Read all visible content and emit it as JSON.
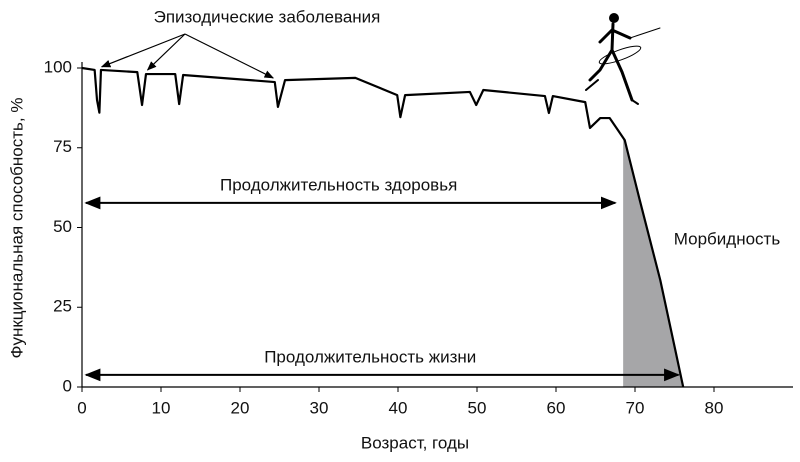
{
  "chart_data": {
    "type": "line",
    "x_label": "Возраст, годы",
    "y_label": "Функциональная способность, %",
    "xlim": [
      0,
      90
    ],
    "xticks": [
      0,
      10,
      20,
      30,
      40,
      50,
      60,
      70,
      80
    ],
    "ylim": [
      0,
      100
    ],
    "yticks": [
      0,
      25,
      50,
      75,
      100
    ],
    "grid": false,
    "series": [
      {
        "color": "#000000",
        "x": [
          0,
          1.6,
          1.9,
          2.2,
          2.4,
          7.0,
          7.6,
          8.1,
          11.8,
          12.3,
          12.8,
          24.4,
          24.8,
          25.7,
          34.6,
          39.9,
          40.3,
          40.9,
          49.1,
          49.9,
          50.8,
          58.6,
          59.1,
          59.6,
          63.7,
          64.3,
          65.6,
          66.8,
          68.7,
          70.6,
          73.2,
          75.1,
          76.1
        ],
        "values": [
          100,
          99.4,
          90,
          86,
          99.4,
          98.7,
          88.4,
          98.1,
          98.1,
          88.7,
          97.8,
          95.6,
          87.8,
          96.2,
          96.9,
          91.5,
          84.6,
          91.5,
          92.5,
          88.4,
          93.1,
          91.2,
          85.9,
          91.2,
          89.3,
          81.2,
          84.3,
          84.3,
          77.4,
          58.6,
          33.5,
          11.6,
          0
        ]
      }
    ],
    "morbidity": {
      "label": "Морбидность",
      "x_start": 68.5,
      "color": "#a6a6a8"
    },
    "episodes": {
      "label": "Эпизодические заболевания",
      "targets": [
        [
          2.5,
          98.5
        ],
        [
          8.3,
          97.5
        ],
        [
          24.2,
          95
        ]
      ]
    },
    "spans": [
      {
        "label": "Продолжительность здоровья",
        "x_start": 0,
        "x_end": 67.5,
        "y": 57.7
      },
      {
        "label": "Продолжительность жизни",
        "x_start": 0,
        "x_end": 75.5,
        "y": 3.8
      }
    ]
  }
}
